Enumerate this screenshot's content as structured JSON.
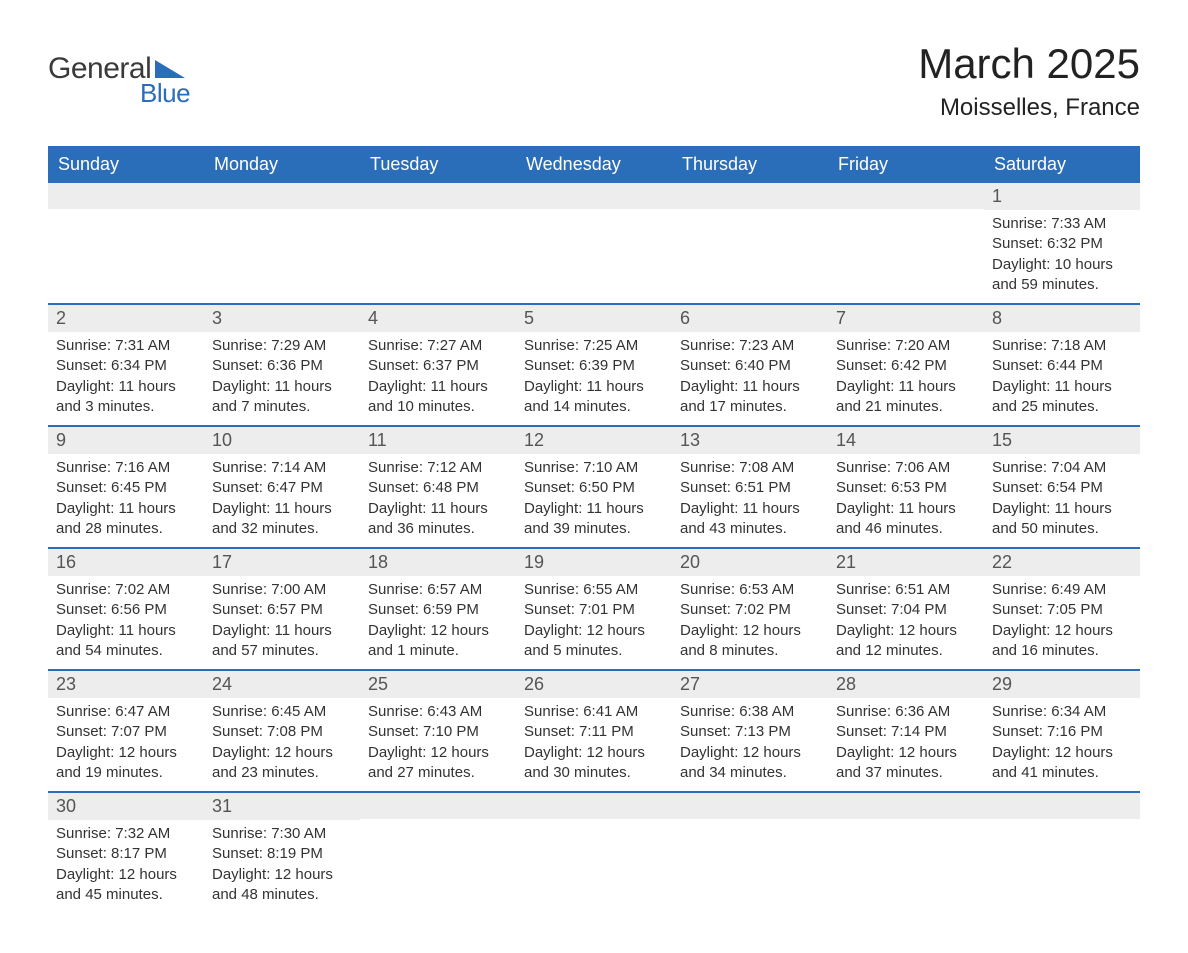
{
  "brand": {
    "word1": "General",
    "word2": "Blue",
    "triangle_color": "#2a6db8",
    "text_color_general": "#3a3a3a",
    "text_color_blue": "#2a6db8"
  },
  "header": {
    "title": "March 2025",
    "location": "Moisselles, France",
    "title_fontsize": 42,
    "location_fontsize": 24
  },
  "colors": {
    "header_bg": "#2a6db8",
    "header_text": "#ffffff",
    "row_divider": "#2a6db8",
    "daynum_bg": "#ededed",
    "daynum_text": "#555555",
    "body_text": "#333333",
    "page_bg": "#ffffff"
  },
  "typography": {
    "header_fontsize": 18,
    "daynum_fontsize": 18,
    "body_fontsize": 15,
    "font_family": "Arial"
  },
  "calendar": {
    "day_headers": [
      "Sunday",
      "Monday",
      "Tuesday",
      "Wednesday",
      "Thursday",
      "Friday",
      "Saturday"
    ],
    "weeks": [
      [
        null,
        null,
        null,
        null,
        null,
        null,
        {
          "n": "1",
          "sunrise": "Sunrise: 7:33 AM",
          "sunset": "Sunset: 6:32 PM",
          "daylight": "Daylight: 10 hours and 59 minutes."
        }
      ],
      [
        {
          "n": "2",
          "sunrise": "Sunrise: 7:31 AM",
          "sunset": "Sunset: 6:34 PM",
          "daylight": "Daylight: 11 hours and 3 minutes."
        },
        {
          "n": "3",
          "sunrise": "Sunrise: 7:29 AM",
          "sunset": "Sunset: 6:36 PM",
          "daylight": "Daylight: 11 hours and 7 minutes."
        },
        {
          "n": "4",
          "sunrise": "Sunrise: 7:27 AM",
          "sunset": "Sunset: 6:37 PM",
          "daylight": "Daylight: 11 hours and 10 minutes."
        },
        {
          "n": "5",
          "sunrise": "Sunrise: 7:25 AM",
          "sunset": "Sunset: 6:39 PM",
          "daylight": "Daylight: 11 hours and 14 minutes."
        },
        {
          "n": "6",
          "sunrise": "Sunrise: 7:23 AM",
          "sunset": "Sunset: 6:40 PM",
          "daylight": "Daylight: 11 hours and 17 minutes."
        },
        {
          "n": "7",
          "sunrise": "Sunrise: 7:20 AM",
          "sunset": "Sunset: 6:42 PM",
          "daylight": "Daylight: 11 hours and 21 minutes."
        },
        {
          "n": "8",
          "sunrise": "Sunrise: 7:18 AM",
          "sunset": "Sunset: 6:44 PM",
          "daylight": "Daylight: 11 hours and 25 minutes."
        }
      ],
      [
        {
          "n": "9",
          "sunrise": "Sunrise: 7:16 AM",
          "sunset": "Sunset: 6:45 PM",
          "daylight": "Daylight: 11 hours and 28 minutes."
        },
        {
          "n": "10",
          "sunrise": "Sunrise: 7:14 AM",
          "sunset": "Sunset: 6:47 PM",
          "daylight": "Daylight: 11 hours and 32 minutes."
        },
        {
          "n": "11",
          "sunrise": "Sunrise: 7:12 AM",
          "sunset": "Sunset: 6:48 PM",
          "daylight": "Daylight: 11 hours and 36 minutes."
        },
        {
          "n": "12",
          "sunrise": "Sunrise: 7:10 AM",
          "sunset": "Sunset: 6:50 PM",
          "daylight": "Daylight: 11 hours and 39 minutes."
        },
        {
          "n": "13",
          "sunrise": "Sunrise: 7:08 AM",
          "sunset": "Sunset: 6:51 PM",
          "daylight": "Daylight: 11 hours and 43 minutes."
        },
        {
          "n": "14",
          "sunrise": "Sunrise: 7:06 AM",
          "sunset": "Sunset: 6:53 PM",
          "daylight": "Daylight: 11 hours and 46 minutes."
        },
        {
          "n": "15",
          "sunrise": "Sunrise: 7:04 AM",
          "sunset": "Sunset: 6:54 PM",
          "daylight": "Daylight: 11 hours and 50 minutes."
        }
      ],
      [
        {
          "n": "16",
          "sunrise": "Sunrise: 7:02 AM",
          "sunset": "Sunset: 6:56 PM",
          "daylight": "Daylight: 11 hours and 54 minutes."
        },
        {
          "n": "17",
          "sunrise": "Sunrise: 7:00 AM",
          "sunset": "Sunset: 6:57 PM",
          "daylight": "Daylight: 11 hours and 57 minutes."
        },
        {
          "n": "18",
          "sunrise": "Sunrise: 6:57 AM",
          "sunset": "Sunset: 6:59 PM",
          "daylight": "Daylight: 12 hours and 1 minute."
        },
        {
          "n": "19",
          "sunrise": "Sunrise: 6:55 AM",
          "sunset": "Sunset: 7:01 PM",
          "daylight": "Daylight: 12 hours and 5 minutes."
        },
        {
          "n": "20",
          "sunrise": "Sunrise: 6:53 AM",
          "sunset": "Sunset: 7:02 PM",
          "daylight": "Daylight: 12 hours and 8 minutes."
        },
        {
          "n": "21",
          "sunrise": "Sunrise: 6:51 AM",
          "sunset": "Sunset: 7:04 PM",
          "daylight": "Daylight: 12 hours and 12 minutes."
        },
        {
          "n": "22",
          "sunrise": "Sunrise: 6:49 AM",
          "sunset": "Sunset: 7:05 PM",
          "daylight": "Daylight: 12 hours and 16 minutes."
        }
      ],
      [
        {
          "n": "23",
          "sunrise": "Sunrise: 6:47 AM",
          "sunset": "Sunset: 7:07 PM",
          "daylight": "Daylight: 12 hours and 19 minutes."
        },
        {
          "n": "24",
          "sunrise": "Sunrise: 6:45 AM",
          "sunset": "Sunset: 7:08 PM",
          "daylight": "Daylight: 12 hours and 23 minutes."
        },
        {
          "n": "25",
          "sunrise": "Sunrise: 6:43 AM",
          "sunset": "Sunset: 7:10 PM",
          "daylight": "Daylight: 12 hours and 27 minutes."
        },
        {
          "n": "26",
          "sunrise": "Sunrise: 6:41 AM",
          "sunset": "Sunset: 7:11 PM",
          "daylight": "Daylight: 12 hours and 30 minutes."
        },
        {
          "n": "27",
          "sunrise": "Sunrise: 6:38 AM",
          "sunset": "Sunset: 7:13 PM",
          "daylight": "Daylight: 12 hours and 34 minutes."
        },
        {
          "n": "28",
          "sunrise": "Sunrise: 6:36 AM",
          "sunset": "Sunset: 7:14 PM",
          "daylight": "Daylight: 12 hours and 37 minutes."
        },
        {
          "n": "29",
          "sunrise": "Sunrise: 6:34 AM",
          "sunset": "Sunset: 7:16 PM",
          "daylight": "Daylight: 12 hours and 41 minutes."
        }
      ],
      [
        {
          "n": "30",
          "sunrise": "Sunrise: 7:32 AM",
          "sunset": "Sunset: 8:17 PM",
          "daylight": "Daylight: 12 hours and 45 minutes."
        },
        {
          "n": "31",
          "sunrise": "Sunrise: 7:30 AM",
          "sunset": "Sunset: 8:19 PM",
          "daylight": "Daylight: 12 hours and 48 minutes."
        },
        null,
        null,
        null,
        null,
        null
      ]
    ]
  }
}
